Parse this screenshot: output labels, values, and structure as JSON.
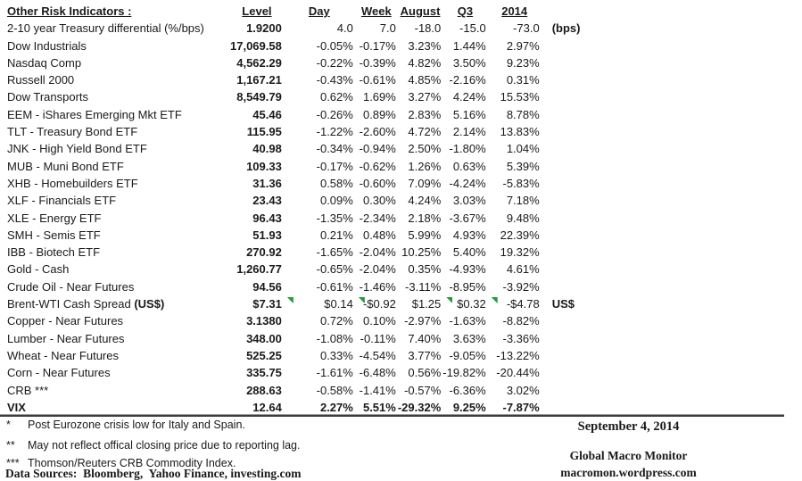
{
  "colors": {
    "text": "#1a1a1a",
    "flag_green": "#1f9d3c",
    "rule_dark": "#3c3c3c",
    "rule_light": "#9a9a9a",
    "background": "#ffffff"
  },
  "icons": {
    "flag": "green-corner-flag-icon"
  },
  "table": {
    "headers": {
      "indicators": "Other Risk Indicators :",
      "level": "Level",
      "day": "Day",
      "week": "Week",
      "august": "August",
      "q3": "Q3",
      "y2014": "2014",
      "note": ""
    },
    "rows": [
      {
        "label": "2-10 year Treasury differential (%/bps)",
        "level": "1.9200",
        "day": "4.0",
        "week": "7.0",
        "august": "-18.0",
        "q3": "-15.0",
        "y2014": "-73.0",
        "note": "(bps)"
      },
      {
        "label": "Dow Industrials",
        "level": "17,069.58",
        "day": "-0.05%",
        "week": "-0.17%",
        "august": "3.23%",
        "q3": "1.44%",
        "y2014": "2.97%"
      },
      {
        "label": "Nasdaq Comp",
        "level": "4,562.29",
        "day": "-0.22%",
        "week": "-0.39%",
        "august": "4.82%",
        "q3": "3.50%",
        "y2014": "9.23%"
      },
      {
        "label": "Russell 2000",
        "level": "1,167.21",
        "day": "-0.43%",
        "week": "-0.61%",
        "august": "4.85%",
        "q3": "-2.16%",
        "y2014": "0.31%"
      },
      {
        "label": "Dow Transports",
        "level": "8,549.79",
        "day": "0.62%",
        "week": "1.69%",
        "august": "3.27%",
        "q3": "4.24%",
        "y2014": "15.53%"
      },
      {
        "label": "EEM - iShares Emerging Mkt ETF",
        "level": "45.46",
        "day": "-0.26%",
        "week": "0.89%",
        "august": "2.83%",
        "q3": "5.16%",
        "y2014": "8.78%"
      },
      {
        "label": "TLT - Treasury Bond ETF",
        "level": "115.95",
        "day": "-1.22%",
        "week": "-2.60%",
        "august": "4.72%",
        "q3": "2.14%",
        "y2014": "13.83%"
      },
      {
        "label": "JNK - High Yield Bond ETF",
        "level": "40.98",
        "day": "-0.34%",
        "week": "-0.94%",
        "august": "2.50%",
        "q3": "-1.80%",
        "y2014": "1.04%"
      },
      {
        "label": "MUB - Muni Bond ETF",
        "level": "109.33",
        "day": "-0.17%",
        "week": "-0.62%",
        "august": "1.26%",
        "q3": "0.63%",
        "y2014": "5.39%"
      },
      {
        "label": "XHB - Homebuilders ETF",
        "level": "31.36",
        "day": "0.58%",
        "week": "-0.60%",
        "august": "7.09%",
        "q3": "-4.24%",
        "y2014": "-5.83%"
      },
      {
        "label": "XLF - Financials ETF",
        "level": "23.43",
        "day": "0.09%",
        "week": "0.30%",
        "august": "4.24%",
        "q3": "3.03%",
        "y2014": "7.18%"
      },
      {
        "label": "XLE - Energy ETF",
        "level": "96.43",
        "day": "-1.35%",
        "week": "-2.34%",
        "august": "2.18%",
        "q3": "-3.67%",
        "y2014": "9.48%"
      },
      {
        "label": "SMH - Semis ETF",
        "level": "51.93",
        "day": "0.21%",
        "week": "0.48%",
        "august": "5.99%",
        "q3": "4.93%",
        "y2014": "22.39%"
      },
      {
        "label": "IBB - Biotech ETF",
        "level": "270.92",
        "day": "-1.65%",
        "week": "-2.04%",
        "august": "10.25%",
        "q3": "5.40%",
        "y2014": "19.32%"
      },
      {
        "label": "Gold - Cash",
        "level": "1,260.77",
        "day": "-0.65%",
        "week": "-2.04%",
        "august": "0.35%",
        "q3": "-4.93%",
        "y2014": "4.61%"
      },
      {
        "label": "Crude Oil - Near Futures",
        "level": "94.56",
        "day": "-0.61%",
        "week": "-1.46%",
        "august": "-3.11%",
        "q3": "-8.95%",
        "y2014": "-3.92%"
      },
      {
        "label": "Brent-WTI Cash Spread ",
        "label_bold": "(US$)",
        "level": "$7.31",
        "day": "$0.14",
        "week": "-$0.92",
        "august": "$1.25",
        "q3": "$0.32",
        "y2014": "-$4.78",
        "note": "US$",
        "flags": [
          "day",
          "week",
          "q3",
          "y2014"
        ]
      },
      {
        "label": "Copper - Near Futures",
        "level": "3.1380",
        "day": "0.72%",
        "week": "0.10%",
        "august": "-2.97%",
        "q3": "-1.63%",
        "y2014": "-8.82%"
      },
      {
        "label": "Lumber - Near Futures",
        "level": "348.00",
        "day": "-1.08%",
        "week": "-0.11%",
        "august": "7.40%",
        "q3": "3.63%",
        "y2014": "-3.36%"
      },
      {
        "label": "Wheat - Near Futures",
        "level": "525.25",
        "day": "0.33%",
        "week": "-4.54%",
        "august": "3.77%",
        "q3": "-9.05%",
        "y2014": "-13.22%"
      },
      {
        "label": "Corn - Near Futures",
        "level": "335.75",
        "day": "-1.61%",
        "week": "-6.48%",
        "august": "0.56%",
        "q3": "-19.82%",
        "y2014": "-20.44%"
      },
      {
        "label": "CRB ***",
        "level": "288.63",
        "day": "-0.58%",
        "week": "-1.41%",
        "august": "-0.57%",
        "q3": "-6.36%",
        "y2014": "3.02%"
      },
      {
        "label": "VIX",
        "level": "12.64",
        "day": "2.27%",
        "week": "5.51%",
        "august": "-29.32%",
        "q3": "9.25%",
        "y2014": "-7.87%",
        "bold": true
      }
    ]
  },
  "footnotes": [
    {
      "marker": "*",
      "text": "Post Eurozone crisis low for Italy and Spain."
    },
    {
      "marker": "**",
      "text": "May not reflect offical closing price due to reporting lag."
    },
    {
      "marker": "***",
      "text": "Thomson/Reuters CRB Commodity Index."
    }
  ],
  "footer": {
    "data_sources": "Data Sources:  Bloomberg,  Yahoo Finance, investing.com",
    "date": "September 4, 2014",
    "brand": "Global Macro Monitor",
    "site": "macromon.wordpress.com"
  }
}
